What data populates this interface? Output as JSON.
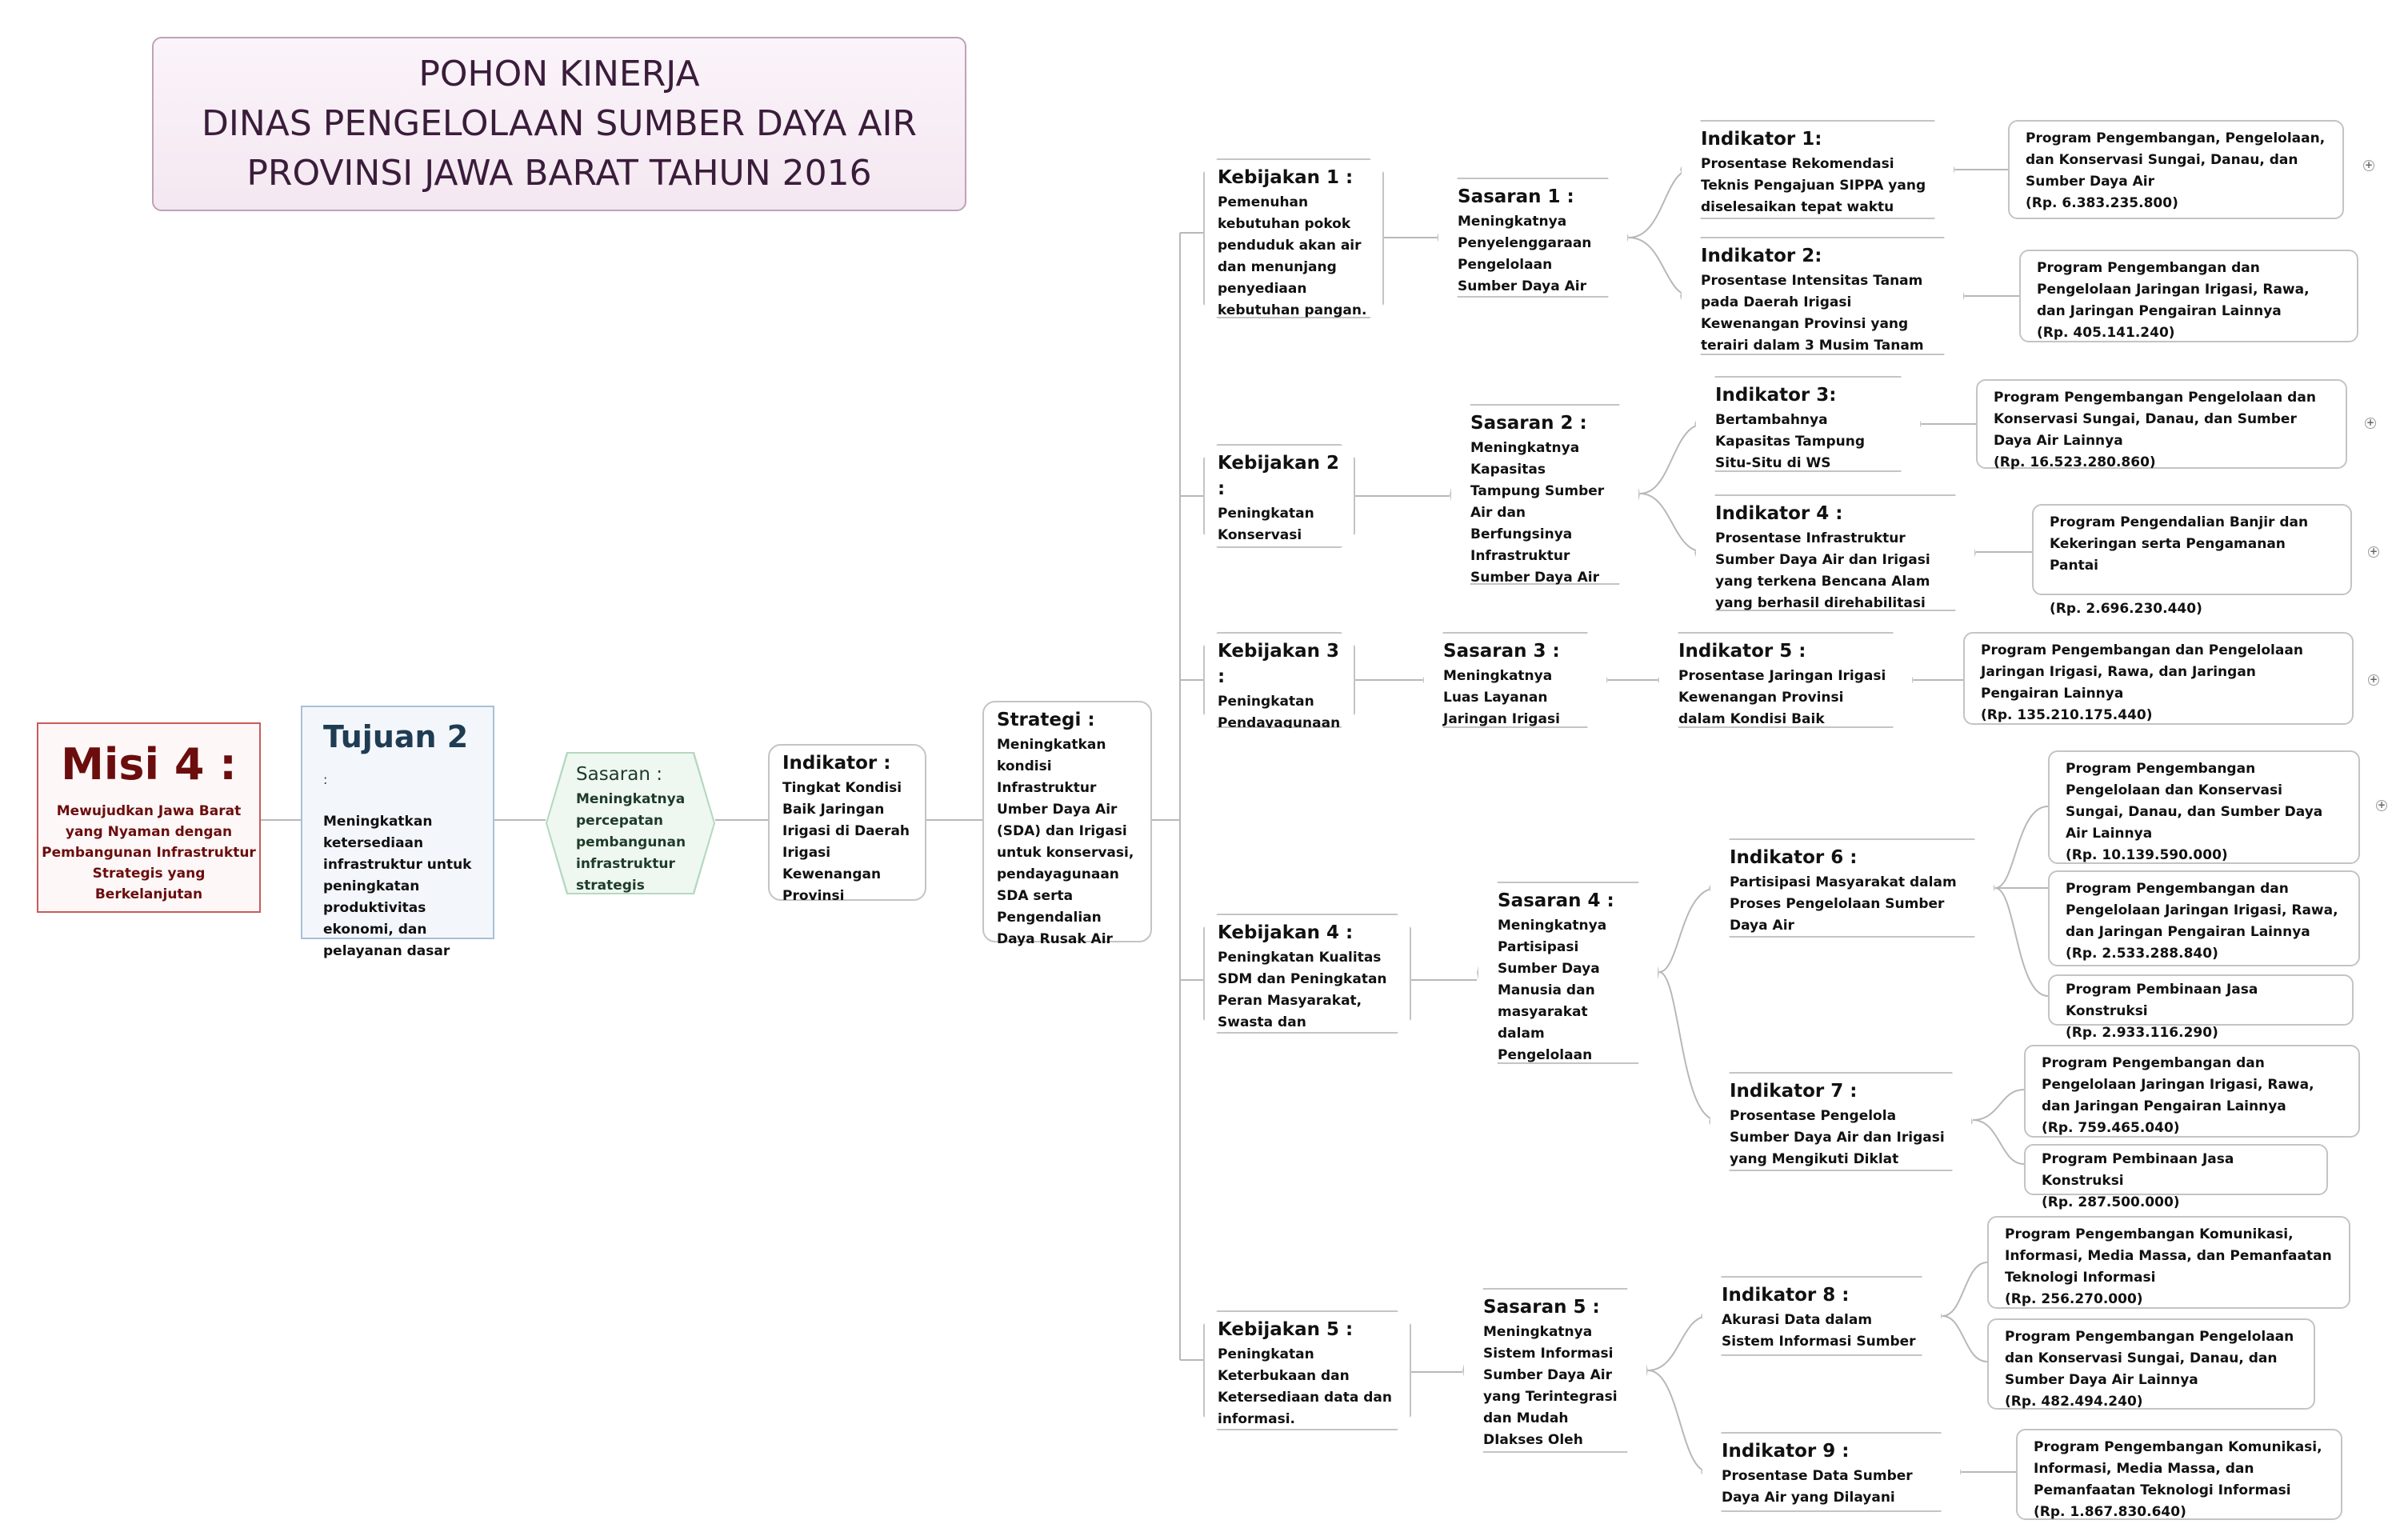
{
  "title": {
    "line1": "POHON KINERJA",
    "line2": "DINAS PENGELOLAAN SUMBER DAYA AIR",
    "line3": "PROVINSI JAWA BARAT TAHUN 2016"
  },
  "misi": {
    "heading": "Misi 4 :",
    "text": "Mewujudkan Jawa Barat yang Nyaman dengan Pembangunan Infrastruktur Strategis yang Berkelanjutan"
  },
  "tujuan": {
    "heading": "Tujuan 2",
    "colon": ":",
    "text": "Meningkatkan ketersediaan infrastruktur untuk peningkatan produktivitas ekonomi, dan pelayanan dasar"
  },
  "sasaran": {
    "heading": "Sasaran :",
    "text": "Meningkatnya percepatan pembangunan infrastruktur strategis"
  },
  "indikator": {
    "heading": "Indikator :",
    "text": "Tingkat Kondisi Baik Jaringan Irigasi di Daerah Irigasi Kewenangan Provinsi"
  },
  "strategi": {
    "heading": "Strategi :",
    "text": "Meningkatkan kondisi Infrastruktur Umber Daya Air (SDA) dan Irigasi untuk konservasi, pendayagunaan SDA serta Pengendalian Daya Rusak Air"
  },
  "kebijakan": [
    {
      "heading": "Kebijakan 1 :",
      "text": "Pemenuhan kebutuhan pokok penduduk akan air dan menunjang penyediaan kebutuhan pangan."
    },
    {
      "heading": "Kebijakan 2 :",
      "text": "Peningkatan Konservasi Sumber Daya Air"
    },
    {
      "heading": "Kebijakan 3 :",
      "text": "Peningkatan Pendayagunaan Sumber Daya Air"
    },
    {
      "heading": "Kebijakan 4 :",
      "text": "Peningkatan Kualitas SDM dan Peningkatan Peran Masyarakat, Swasta dan Pemerintah"
    },
    {
      "heading": "Kebijakan 5 :",
      "text": "Peningkatan Keterbukaan dan Ketersediaan data dan informasi."
    }
  ],
  "sasaran_list": [
    {
      "heading": "Sasaran 1 :",
      "text": "Meningkatnya Penyelenggaraan Pengelolaan Sumber Daya Air"
    },
    {
      "heading": "Sasaran 2 :",
      "text": "Meningkatnya Kapasitas Tampung Sumber Air dan Berfungsinya Infrastruktur Sumber Daya Air yang terkena Bencana Alam"
    },
    {
      "heading": "Sasaran 3 :",
      "text": "Meningkatnya Luas Layanan Jaringan Irigasi"
    },
    {
      "heading": "Sasaran 4 :",
      "text": "Meningkatnya Partisipasi Sumber Daya Manusia dan masyarakat dalam Pengelolaan Sumber Daya Air dan Infrastruktur Irigasi"
    },
    {
      "heading": "Sasaran 5 :",
      "text": "Meningkatnya Sistem Informasi Sumber Daya Air yang Terintegrasi dan Mudah DIakses Oleh Masyarakat"
    }
  ],
  "indikator_list": [
    {
      "heading": "Indikator 1:",
      "text": "Prosentase Rekomendasi Teknis Pengajuan SIPPA yang diselesaikan tepat waktu"
    },
    {
      "heading": "Indikator 2:",
      "text": "Prosentase Intensitas Tanam pada Daerah Irigasi Kewenangan Provinsi yang terairi dalam 3 Musim Tanam"
    },
    {
      "heading": "Indikator 3:",
      "text": "Bertambahnya Kapasitas Tampung Situ-Situ di WS Kewenangan Provinsi"
    },
    {
      "heading": "Indikator 4 :",
      "text": "Prosentase Infrastruktur Sumber Daya Air dan Irigasi yang terkena Bencana Alam yang berhasil direhabilitasi"
    },
    {
      "heading": "Indikator 5 :",
      "text": "Prosentase Jaringan Irigasi Kewenangan Provinsi dalam Kondisi Baik"
    },
    {
      "heading": "Indikator 6 :",
      "text": "Partisipasi Masyarakat dalam Proses Pengelolaan Sumber Daya Air"
    },
    {
      "heading": "Indikator 7 :",
      "text": "Prosentase Pengelola Sumber Daya Air dan Irigasi yang Mengikuti Diklat"
    },
    {
      "heading": "Indikator 8 :",
      "text": "Akurasi Data dalam Sistem Informasi Sumber Daya Air"
    },
    {
      "heading": "Indikator 9 :",
      "text": "Prosentase Data Sumber Daya Air yang Dilayani"
    }
  ],
  "programs": [
    {
      "name": "Program Pengembangan, Pengelolaan, dan Konservasi Sungai, Danau, dan Sumber Daya Air",
      "budget": "(Rp. 6.383.235.800)"
    },
    {
      "name": "Program Pengembangan dan Pengelolaan Jaringan Irigasi, Rawa, dan Jaringan Pengairan Lainnya",
      "budget": "(Rp. 405.141.240)"
    },
    {
      "name": "Program Pengembangan Pengelolaan dan Konservasi Sungai, Danau, dan Sumber Daya Air Lainnya",
      "budget": "(Rp. 16.523.280.860)"
    },
    {
      "name": "Program Pengendalian Banjir dan Kekeringan serta Pengamanan Pantai",
      "budget": "(Rp. 2.696.230.440)"
    },
    {
      "name": "Program Pengembangan dan Pengelolaan Jaringan Irigasi, Rawa, dan Jaringan Pengairan Lainnya",
      "budget": "(Rp. 135.210.175.440)"
    },
    {
      "name": "Program Pengembangan Pengelolaan dan Konservasi Sungai, Danau, dan Sumber Daya Air Lainnya",
      "budget": "(Rp. 10.139.590.000)"
    },
    {
      "name": "Program Pengembangan dan Pengelolaan Jaringan Irigasi, Rawa, dan Jaringan Pengairan Lainnya",
      "budget": "(Rp. 2.533.288.840)"
    },
    {
      "name": "Program Pembinaan Jasa Konstruksi",
      "budget": "(Rp. 2.933.116.290)"
    },
    {
      "name": "Program Pengembangan dan Pengelolaan Jaringan Irigasi, Rawa, dan Jaringan Pengairan Lainnya",
      "budget": "(Rp. 759.465.040)"
    },
    {
      "name": "Program Pembinaan Jasa Konstruksi",
      "budget": "(Rp. 287.500.000)"
    },
    {
      "name": "Program Pengembangan Komunikasi, Informasi, Media Massa, dan Pemanfaatan Teknologi Informasi",
      "budget": "(Rp. 256.270.000)"
    },
    {
      "name": "Program Pengembangan Pengelolaan dan Konservasi Sungai, Danau, dan Sumber Daya Air Lainnya",
      "budget": "(Rp. 482.494.240)"
    },
    {
      "name": "Program Pengembangan Komunikasi, Informasi, Media Massa, dan Pemanfaatan Teknologi Informasi",
      "budget": "(Rp. 1.867.830.640)"
    }
  ],
  "expand_symbol": "+"
}
